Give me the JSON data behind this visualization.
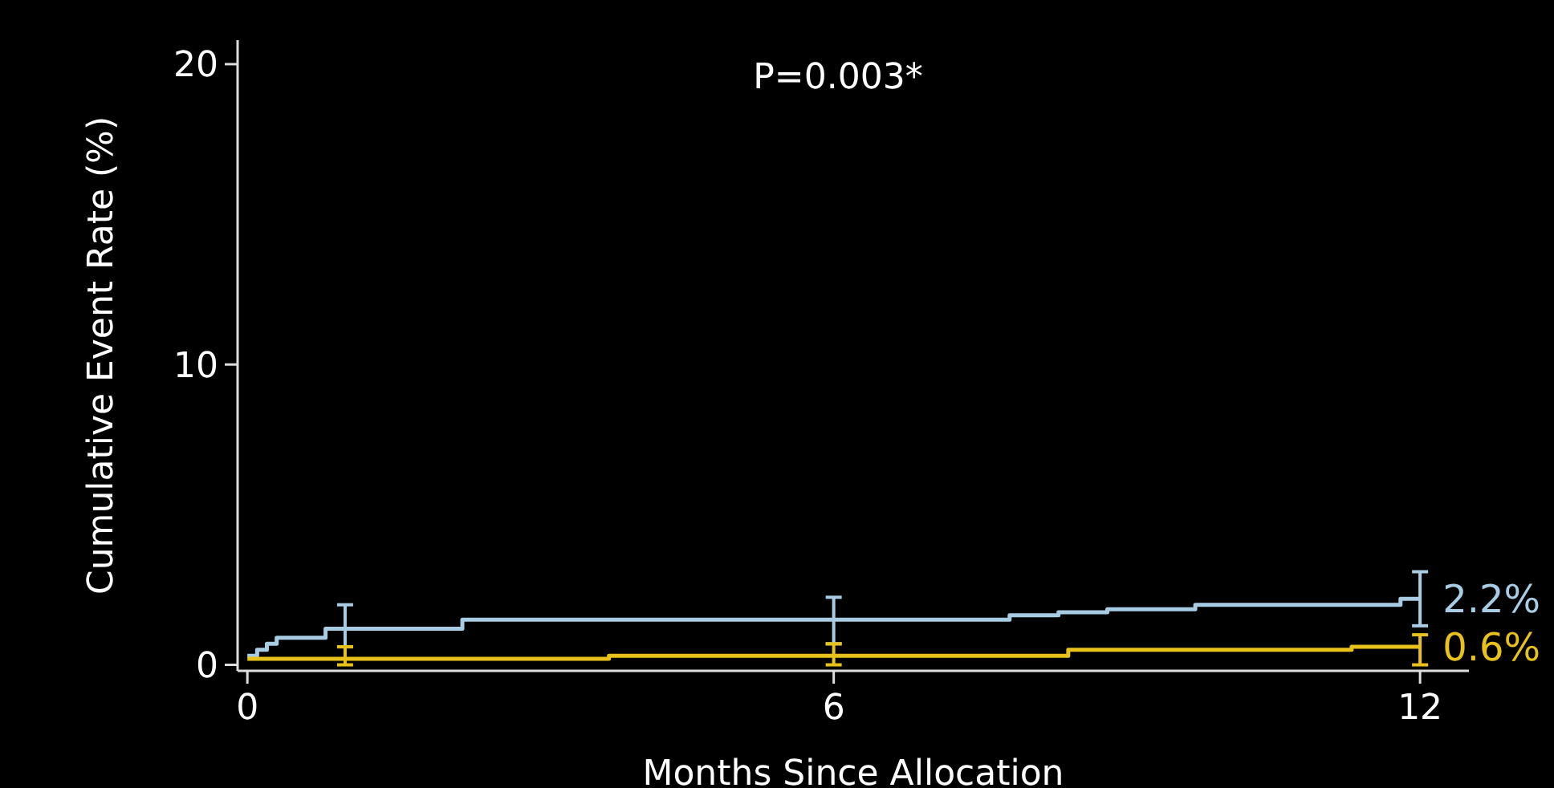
{
  "chart_data": {
    "type": "step",
    "xlabel": "Months Since Allocation",
    "ylabel": "Cumulative Event Rate (%)",
    "annotations": [
      "P=0.003*"
    ],
    "xlim": [
      -0.1,
      12.5
    ],
    "xticks": [
      0,
      6,
      12
    ],
    "ylim": [
      -0.2,
      20.8
    ],
    "yticks": [
      0,
      10,
      20
    ],
    "grid": false,
    "line_style": "solid",
    "series": [
      {
        "color": "#a8cce4",
        "x": [
          0,
          0.1,
          0.2,
          0.3,
          0.8,
          1,
          2.2,
          6,
          7.8,
          8.3,
          8.8,
          9.7,
          11.8,
          12
        ],
        "values": [
          0.3,
          0.5,
          0.7,
          0.9,
          1.2,
          1.2,
          1.5,
          1.5,
          1.65,
          1.75,
          1.85,
          2.0,
          2.2,
          2.2
        ],
        "errors": [
          null,
          null,
          null,
          null,
          null,
          [
            0.6,
            2.0
          ],
          null,
          [
            0.7,
            2.25
          ],
          null,
          null,
          null,
          null,
          null,
          [
            1.3,
            3.1
          ]
        ],
        "value_labels": [
          null,
          null,
          null,
          null,
          null,
          null,
          null,
          null,
          null,
          null,
          null,
          null,
          null,
          "2.2%"
        ]
      },
      {
        "color": "#e8c21a",
        "x": [
          0,
          1,
          3.7,
          6,
          8.4,
          11.3,
          12
        ],
        "values": [
          0.2,
          0.2,
          0.3,
          0.3,
          0.5,
          0.6,
          0.6
        ],
        "errors": [
          null,
          [
            0,
            0.6
          ],
          null,
          [
            0,
            0.7
          ],
          null,
          null,
          [
            0,
            1.0
          ]
        ],
        "value_labels": [
          null,
          null,
          null,
          null,
          null,
          null,
          "0.6%"
        ]
      }
    ]
  }
}
